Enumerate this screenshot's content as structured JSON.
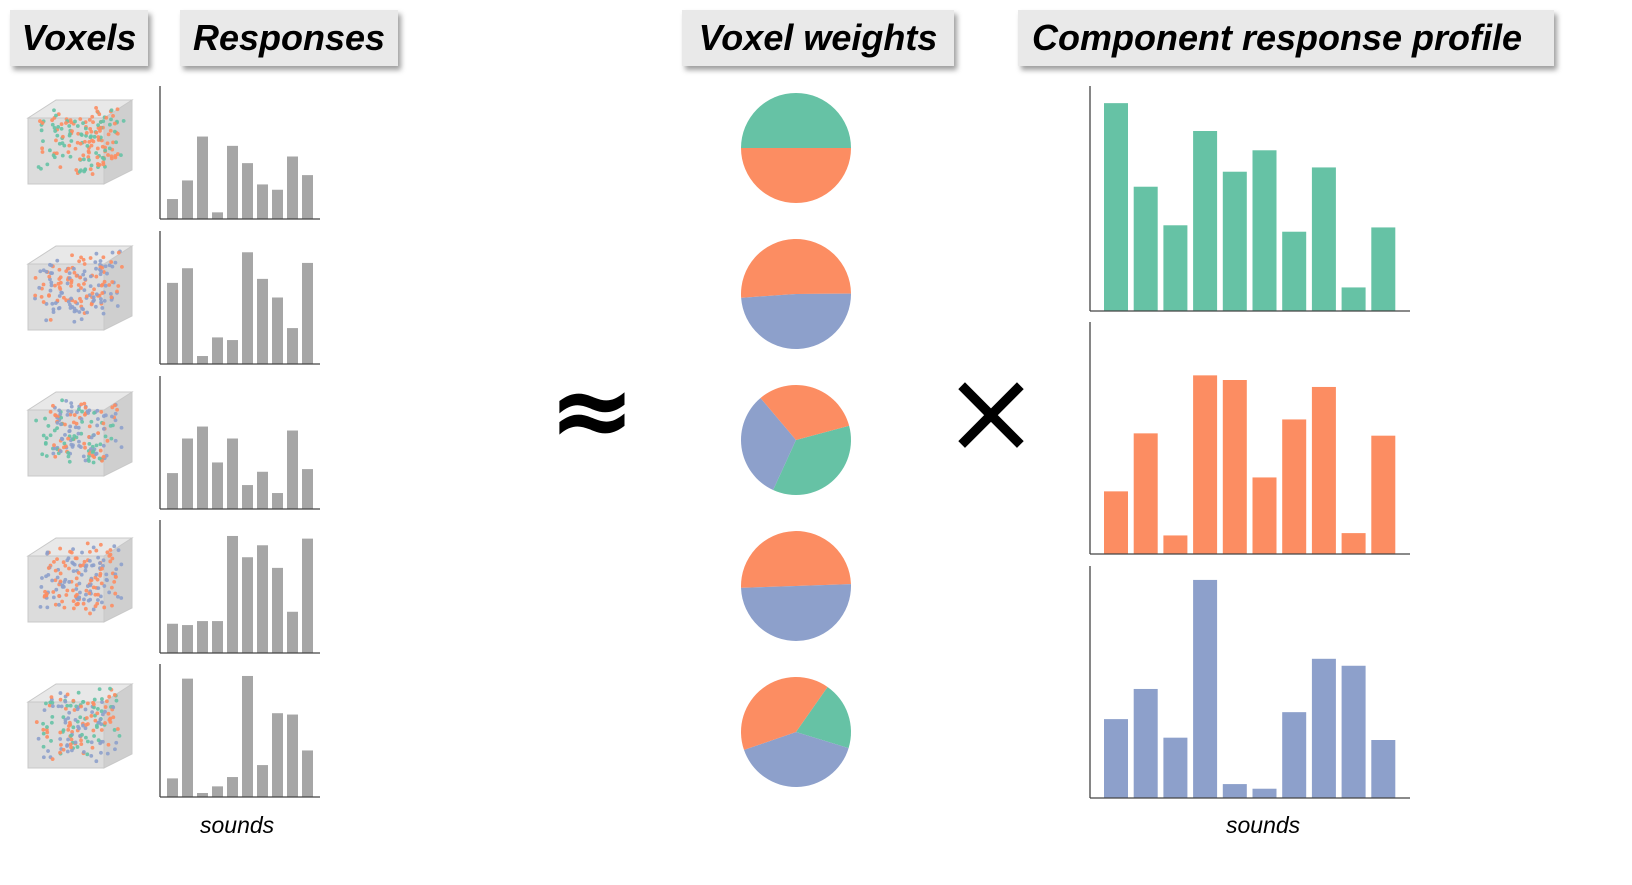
{
  "headers": {
    "voxels": "Voxels",
    "responses": "Responses",
    "voxel_weights": "Voxel weights",
    "component_profile": "Component response profile"
  },
  "symbols": {
    "approx": "≈",
    "times": "×"
  },
  "axis_labels": {
    "left": "sounds",
    "right": "sounds"
  },
  "colors": {
    "green": "#66c2a5",
    "orange": "#fc8d62",
    "blue": "#8da0cb",
    "gray": "#a6a6a6",
    "header_bg": "#e9e9e9"
  },
  "voxel_cubes": [
    {
      "mix": [
        "green",
        "orange"
      ]
    },
    {
      "mix": [
        "orange",
        "blue"
      ]
    },
    {
      "mix": [
        "green",
        "orange",
        "blue"
      ]
    },
    {
      "mix": [
        "orange",
        "blue"
      ]
    },
    {
      "mix": [
        "green",
        "orange",
        "blue"
      ]
    }
  ],
  "chart_data": [
    {
      "type": "bar",
      "name": "voxel-1-responses",
      "categories": [
        "1",
        "2",
        "3",
        "4",
        "5",
        "6",
        "7",
        "8",
        "9",
        "10"
      ],
      "values": [
        15,
        29,
        62,
        5,
        55,
        42,
        26,
        22,
        47,
        33
      ],
      "ylim": [
        0,
        100
      ]
    },
    {
      "type": "bar",
      "name": "voxel-2-responses",
      "categories": [
        "1",
        "2",
        "3",
        "4",
        "5",
        "6",
        "7",
        "8",
        "9",
        "10"
      ],
      "values": [
        61,
        72,
        6,
        20,
        18,
        84,
        64,
        50,
        27,
        76
      ],
      "ylim": [
        0,
        100
      ]
    },
    {
      "type": "bar",
      "name": "voxel-3-responses",
      "categories": [
        "1",
        "2",
        "3",
        "4",
        "5",
        "6",
        "7",
        "8",
        "9",
        "10"
      ],
      "values": [
        27,
        53,
        62,
        35,
        53,
        18,
        28,
        12,
        59,
        30
      ],
      "ylim": [
        0,
        100
      ]
    },
    {
      "type": "bar",
      "name": "voxel-4-responses",
      "categories": [
        "1",
        "2",
        "3",
        "4",
        "5",
        "6",
        "7",
        "8",
        "9",
        "10"
      ],
      "values": [
        22,
        21,
        24,
        24,
        88,
        72,
        81,
        64,
        31,
        86
      ],
      "ylim": [
        0,
        100
      ]
    },
    {
      "type": "bar",
      "name": "voxel-5-responses",
      "categories": [
        "1",
        "2",
        "3",
        "4",
        "5",
        "6",
        "7",
        "8",
        "9",
        "10"
      ],
      "values": [
        14,
        89,
        3,
        8,
        15,
        91,
        24,
        63,
        62,
        35
      ],
      "ylim": [
        0,
        100
      ]
    },
    {
      "type": "pie",
      "name": "voxel-1-weights",
      "slices": [
        {
          "color": "green",
          "value": 50
        },
        {
          "color": "orange",
          "value": 50
        }
      ]
    },
    {
      "type": "pie",
      "name": "voxel-2-weights",
      "slices": [
        {
          "color": "orange",
          "value": 51
        },
        {
          "color": "blue",
          "value": 49
        }
      ]
    },
    {
      "type": "pie",
      "name": "voxel-3-weights",
      "slices": [
        {
          "color": "green",
          "value": 36
        },
        {
          "color": "blue",
          "value": 32
        },
        {
          "color": "orange",
          "value": 32
        }
      ]
    },
    {
      "type": "pie",
      "name": "voxel-4-weights",
      "slices": [
        {
          "color": "orange",
          "value": 50
        },
        {
          "color": "blue",
          "value": 50
        }
      ]
    },
    {
      "type": "pie",
      "name": "voxel-5-weights",
      "slices": [
        {
          "color": "green",
          "value": 20
        },
        {
          "color": "blue",
          "value": 40
        },
        {
          "color": "orange",
          "value": 40
        }
      ]
    },
    {
      "type": "bar",
      "name": "component-1-profile",
      "color": "green",
      "categories": [
        "1",
        "2",
        "3",
        "4",
        "5",
        "6",
        "7",
        "8",
        "9",
        "10"
      ],
      "values": [
        97,
        58,
        40,
        84,
        65,
        75,
        37,
        67,
        11,
        39
      ],
      "ylim": [
        0,
        105
      ]
    },
    {
      "type": "bar",
      "name": "component-2-profile",
      "color": "orange",
      "categories": [
        "1",
        "2",
        "3",
        "4",
        "5",
        "6",
        "7",
        "8",
        "9",
        "10"
      ],
      "values": [
        27,
        52,
        8,
        77,
        75,
        33,
        58,
        72,
        9,
        51
      ],
      "ylim": [
        0,
        100
      ]
    },
    {
      "type": "bar",
      "name": "component-3-profile",
      "color": "blue",
      "categories": [
        "1",
        "2",
        "3",
        "4",
        "5",
        "6",
        "7",
        "8",
        "9",
        "10"
      ],
      "values": [
        34,
        47,
        26,
        94,
        6,
        4,
        37,
        60,
        57,
        25
      ],
      "ylim": [
        0,
        100
      ]
    }
  ]
}
